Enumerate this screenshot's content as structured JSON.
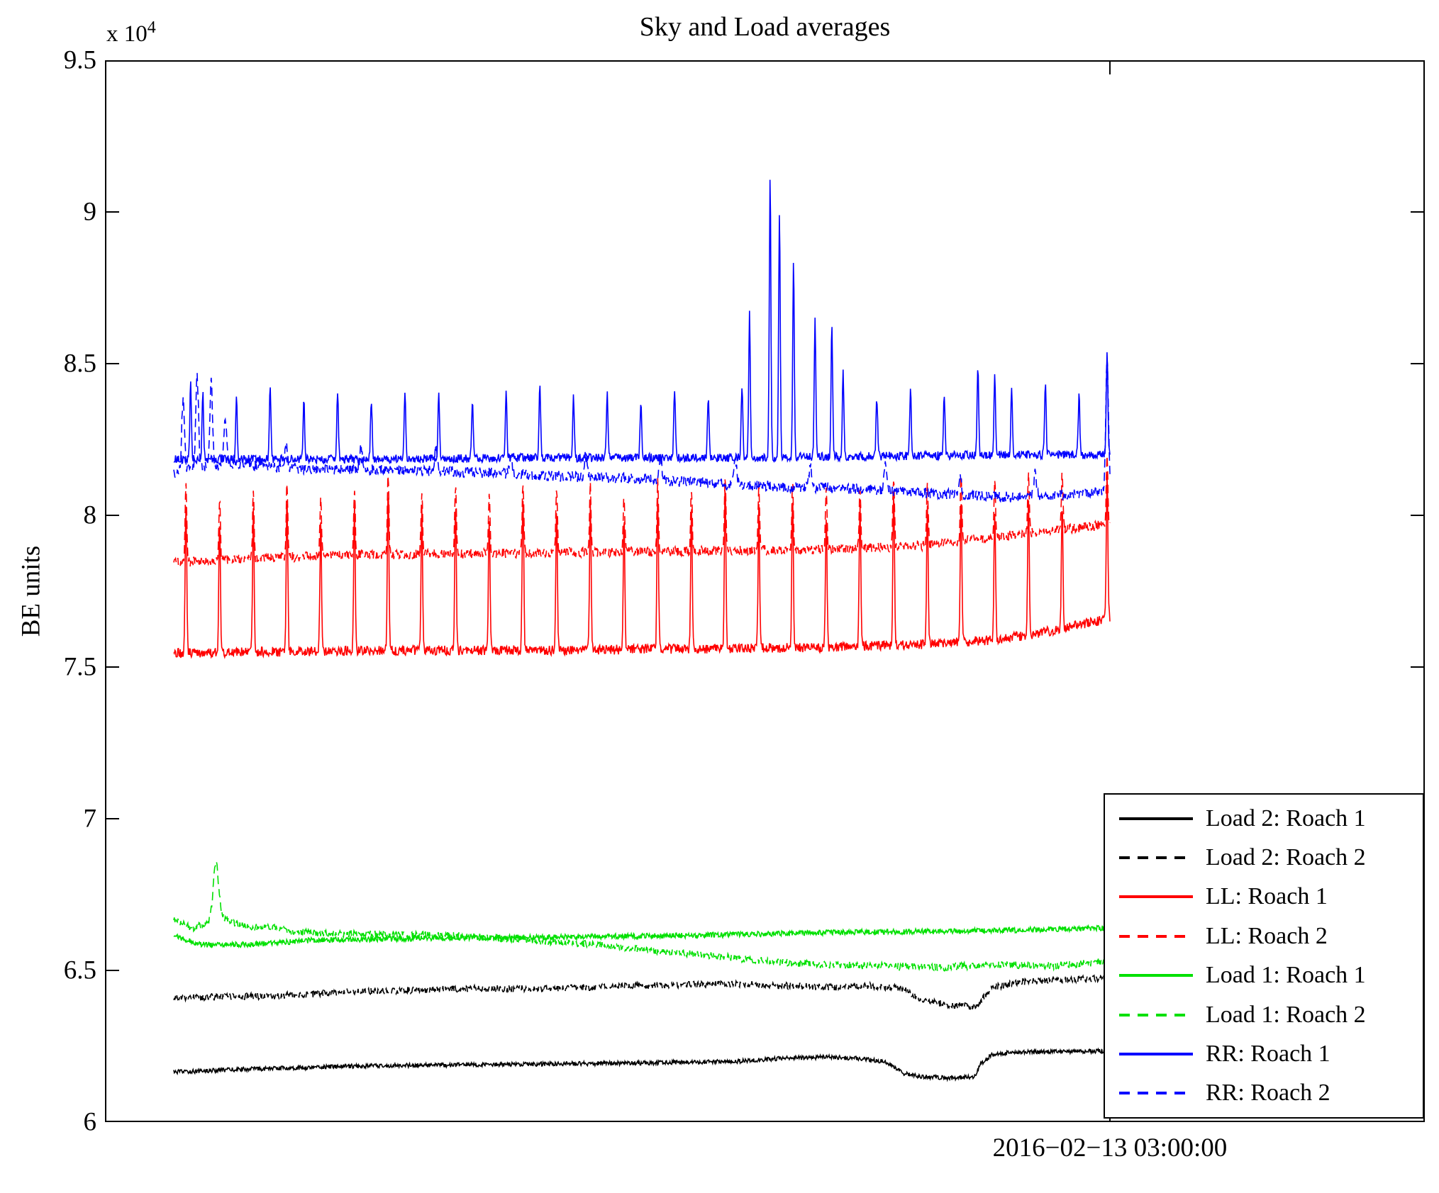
{
  "chart_data": {
    "type": "line",
    "title": "Sky and Load averages",
    "xlabel": "",
    "ylabel": "BE units",
    "y_exponent_prefix": "x 10",
    "y_exponent": "4",
    "y_unit_multiplier": 10000,
    "ylim": [
      6,
      9.5
    ],
    "yticks": [
      6,
      6.5,
      7,
      7.5,
      8,
      8.5,
      9,
      9.5
    ],
    "ytick_labels": [
      "6",
      "6.5",
      "7",
      "7.5",
      "8",
      "8.5",
      "9",
      "9.5"
    ],
    "x_tick_labels": [
      "2016−02−13 03:00:00"
    ],
    "x_tick_fracs": [
      0.7614
    ],
    "grid": false,
    "legend_position": "lower right",
    "series": [
      {
        "name": "Load 2: Roach 1",
        "color": "#000000",
        "style": "solid",
        "noise": 0.007,
        "spike_width": 0.0012,
        "baseline": [
          [
            0,
            6.165
          ],
          [
            0.08,
            6.175
          ],
          [
            0.2,
            6.185
          ],
          [
            0.35,
            6.19
          ],
          [
            0.5,
            6.195
          ],
          [
            0.6,
            6.2
          ],
          [
            0.65,
            6.21
          ],
          [
            0.7,
            6.215
          ],
          [
            0.73,
            6.21
          ],
          [
            0.76,
            6.2
          ],
          [
            0.78,
            6.16
          ],
          [
            0.8,
            6.15
          ],
          [
            0.83,
            6.145
          ],
          [
            0.855,
            6.15
          ],
          [
            0.862,
            6.19
          ],
          [
            0.875,
            6.225
          ],
          [
            0.9,
            6.23
          ],
          [
            1,
            6.235
          ]
        ],
        "spikes": []
      },
      {
        "name": "Load 2: Roach 2",
        "color": "#000000",
        "style": "dashed",
        "noise": 0.011,
        "spike_width": 0.0012,
        "baseline": [
          [
            0,
            6.41
          ],
          [
            0.1,
            6.415
          ],
          [
            0.2,
            6.43
          ],
          [
            0.3,
            6.44
          ],
          [
            0.4,
            6.44
          ],
          [
            0.5,
            6.45
          ],
          [
            0.6,
            6.455
          ],
          [
            0.65,
            6.45
          ],
          [
            0.7,
            6.445
          ],
          [
            0.74,
            6.45
          ],
          [
            0.78,
            6.44
          ],
          [
            0.8,
            6.4
          ],
          [
            0.83,
            6.385
          ],
          [
            0.858,
            6.38
          ],
          [
            0.872,
            6.44
          ],
          [
            0.9,
            6.46
          ],
          [
            0.95,
            6.47
          ],
          [
            1,
            6.475
          ]
        ],
        "spikes": []
      },
      {
        "name": "LL: Roach 1",
        "color": "#ff0000",
        "style": "solid",
        "noise": 0.016,
        "spike_width": 0.0012,
        "baseline": [
          [
            0,
            7.545
          ],
          [
            0.1,
            7.55
          ],
          [
            0.25,
            7.555
          ],
          [
            0.4,
            7.555
          ],
          [
            0.55,
            7.56
          ],
          [
            0.7,
            7.565
          ],
          [
            0.8,
            7.575
          ],
          [
            0.88,
            7.59
          ],
          [
            0.93,
            7.615
          ],
          [
            0.97,
            7.64
          ],
          [
            1,
            7.66
          ]
        ],
        "spikes": [
          [
            0.013,
            0.5
          ],
          [
            0.049,
            0.44
          ],
          [
            0.085,
            0.47
          ],
          [
            0.121,
            0.52
          ],
          [
            0.157,
            0.43
          ],
          [
            0.193,
            0.48
          ],
          [
            0.229,
            0.54
          ],
          [
            0.265,
            0.46
          ],
          [
            0.301,
            0.49
          ],
          [
            0.337,
            0.44
          ],
          [
            0.373,
            0.51
          ],
          [
            0.409,
            0.46
          ],
          [
            0.445,
            0.48
          ],
          [
            0.481,
            0.43
          ],
          [
            0.517,
            0.5
          ],
          [
            0.553,
            0.47
          ],
          [
            0.589,
            0.53
          ],
          [
            0.625,
            0.46
          ],
          [
            0.661,
            0.49
          ],
          [
            0.697,
            0.44
          ],
          [
            0.733,
            0.47
          ],
          [
            0.769,
            0.52
          ],
          [
            0.805,
            0.45
          ],
          [
            0.841,
            0.48
          ],
          [
            0.877,
            0.43
          ],
          [
            0.913,
            0.46
          ],
          [
            0.949,
            0.4
          ],
          [
            0.997,
            0.47
          ]
        ]
      },
      {
        "name": "LL: Roach 2",
        "color": "#ff0000",
        "style": "dashed",
        "noise": 0.016,
        "spike_width": 0.0012,
        "baseline": [
          [
            0,
            7.845
          ],
          [
            0.1,
            7.86
          ],
          [
            0.2,
            7.87
          ],
          [
            0.35,
            7.875
          ],
          [
            0.5,
            7.88
          ],
          [
            0.62,
            7.885
          ],
          [
            0.72,
            7.89
          ],
          [
            0.8,
            7.9
          ],
          [
            0.88,
            7.93
          ],
          [
            0.94,
            7.95
          ],
          [
            1,
            7.97
          ]
        ],
        "spikes": [
          [
            0.013,
            0.26
          ],
          [
            0.049,
            0.2
          ],
          [
            0.085,
            0.22
          ],
          [
            0.121,
            0.25
          ],
          [
            0.157,
            0.19
          ],
          [
            0.193,
            0.22
          ],
          [
            0.229,
            0.26
          ],
          [
            0.265,
            0.21
          ],
          [
            0.301,
            0.23
          ],
          [
            0.337,
            0.2
          ],
          [
            0.373,
            0.24
          ],
          [
            0.409,
            0.21
          ],
          [
            0.445,
            0.22
          ],
          [
            0.481,
            0.19
          ],
          [
            0.517,
            0.23
          ],
          [
            0.553,
            0.21
          ],
          [
            0.589,
            0.25
          ],
          [
            0.625,
            0.21
          ],
          [
            0.661,
            0.22
          ],
          [
            0.697,
            0.2
          ],
          [
            0.733,
            0.21
          ],
          [
            0.769,
            0.24
          ],
          [
            0.805,
            0.2
          ],
          [
            0.841,
            0.22
          ],
          [
            0.877,
            0.19
          ],
          [
            0.913,
            0.21
          ],
          [
            0.949,
            0.18
          ],
          [
            0.997,
            0.22
          ]
        ]
      },
      {
        "name": "Load 1: Roach 1",
        "color": "#00e000",
        "style": "solid",
        "noise": 0.009,
        "spike_width": 0.0012,
        "baseline": [
          [
            0,
            6.615
          ],
          [
            0.03,
            6.585
          ],
          [
            0.08,
            6.585
          ],
          [
            0.15,
            6.6
          ],
          [
            0.25,
            6.605
          ],
          [
            0.4,
            6.61
          ],
          [
            0.55,
            6.615
          ],
          [
            0.7,
            6.625
          ],
          [
            0.85,
            6.63
          ],
          [
            1,
            6.64
          ]
        ],
        "spikes": []
      },
      {
        "name": "Load 1: Roach 2",
        "color": "#00e000",
        "style": "dashed",
        "noise": 0.012,
        "spike_width": 0.004,
        "baseline": [
          [
            0,
            6.665
          ],
          [
            0.02,
            6.64
          ],
          [
            0.035,
            6.655
          ],
          [
            0.05,
            6.68
          ],
          [
            0.065,
            6.655
          ],
          [
            0.08,
            6.64
          ],
          [
            0.1,
            6.645
          ],
          [
            0.13,
            6.625
          ],
          [
            0.2,
            6.62
          ],
          [
            0.3,
            6.615
          ],
          [
            0.38,
            6.6
          ],
          [
            0.45,
            6.585
          ],
          [
            0.5,
            6.57
          ],
          [
            0.55,
            6.555
          ],
          [
            0.62,
            6.535
          ],
          [
            0.68,
            6.52
          ],
          [
            0.75,
            6.515
          ],
          [
            0.82,
            6.51
          ],
          [
            0.88,
            6.52
          ],
          [
            0.94,
            6.515
          ],
          [
            1,
            6.53
          ]
        ],
        "spikes": [
          [
            0.045,
            0.18
          ]
        ]
      },
      {
        "name": "RR: Roach 1",
        "color": "#0000ff",
        "style": "solid",
        "noise": 0.014,
        "spike_width": 0.0012,
        "baseline": [
          [
            0,
            8.185
          ],
          [
            0.2,
            8.185
          ],
          [
            0.4,
            8.19
          ],
          [
            0.6,
            8.19
          ],
          [
            0.75,
            8.195
          ],
          [
            0.9,
            8.2
          ],
          [
            1,
            8.2
          ]
        ],
        "spikes": [
          [
            0.018,
            0.25
          ],
          [
            0.031,
            0.22
          ],
          [
            0.067,
            0.2
          ],
          [
            0.103,
            0.24
          ],
          [
            0.139,
            0.19
          ],
          [
            0.175,
            0.22
          ],
          [
            0.211,
            0.2
          ],
          [
            0.247,
            0.23
          ],
          [
            0.283,
            0.21
          ],
          [
            0.319,
            0.19
          ],
          [
            0.355,
            0.22
          ],
          [
            0.391,
            0.25
          ],
          [
            0.427,
            0.2
          ],
          [
            0.463,
            0.22
          ],
          [
            0.499,
            0.19
          ],
          [
            0.535,
            0.23
          ],
          [
            0.571,
            0.21
          ],
          [
            0.607,
            0.24
          ],
          [
            0.615,
            0.47
          ],
          [
            0.637,
            0.93
          ],
          [
            0.647,
            0.82
          ],
          [
            0.662,
            0.65
          ],
          [
            0.685,
            0.46
          ],
          [
            0.703,
            0.44
          ],
          [
            0.715,
            0.28
          ],
          [
            0.751,
            0.19
          ],
          [
            0.787,
            0.22
          ],
          [
            0.823,
            0.2
          ],
          [
            0.859,
            0.29
          ],
          [
            0.877,
            0.26
          ],
          [
            0.895,
            0.21
          ],
          [
            0.931,
            0.24
          ],
          [
            0.967,
            0.2
          ],
          [
            0.997,
            0.34
          ]
        ]
      },
      {
        "name": "RR: Roach 2",
        "color": "#0000ff",
        "style": "dashed",
        "noise": 0.018,
        "spike_width": 0.002,
        "baseline": [
          [
            0,
            8.14
          ],
          [
            0.03,
            8.16
          ],
          [
            0.06,
            8.17
          ],
          [
            0.12,
            8.155
          ],
          [
            0.2,
            8.15
          ],
          [
            0.3,
            8.145
          ],
          [
            0.4,
            8.13
          ],
          [
            0.5,
            8.12
          ],
          [
            0.6,
            8.1
          ],
          [
            0.7,
            8.09
          ],
          [
            0.8,
            8.075
          ],
          [
            0.88,
            8.06
          ],
          [
            0.94,
            8.065
          ],
          [
            1,
            8.08
          ]
        ],
        "spikes": [
          [
            0.01,
            0.24
          ],
          [
            0.025,
            0.3
          ],
          [
            0.04,
            0.28
          ],
          [
            0.055,
            0.15
          ],
          [
            0.12,
            0.08
          ],
          [
            0.2,
            0.07
          ],
          [
            0.28,
            0.08
          ],
          [
            0.36,
            0.07
          ],
          [
            0.44,
            0.08
          ],
          [
            0.52,
            0.07
          ],
          [
            0.6,
            0.08
          ],
          [
            0.68,
            0.07
          ],
          [
            0.76,
            0.08
          ],
          [
            0.84,
            0.07
          ],
          [
            0.92,
            0.08
          ],
          [
            0.997,
            0.44
          ]
        ]
      }
    ]
  },
  "legend": {
    "position": "lower right"
  },
  "colors": {
    "axis": "#000000",
    "background": "#ffffff",
    "black_series": "#000000",
    "red_series": "#ff0000",
    "green_series": "#00e000",
    "blue_series": "#0000ff"
  }
}
